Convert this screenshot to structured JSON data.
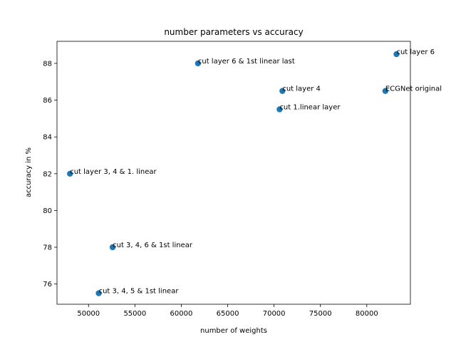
{
  "chart_data": {
    "type": "scatter",
    "title": "number parameters vs accuracy",
    "xlabel": "number of weights",
    "ylabel": "accuracy in %",
    "xlim": [
      46600,
      84700
    ],
    "ylim": [
      74.9,
      89.2
    ],
    "grid": false,
    "marker_color": "#1f77b4",
    "xticks": [
      50000,
      55000,
      60000,
      65000,
      70000,
      75000,
      80000
    ],
    "xtick_labels": [
      "50000",
      "55000",
      "60000",
      "65000",
      "70000",
      "75000",
      "80000"
    ],
    "yticks": [
      76,
      78,
      80,
      82,
      84,
      86,
      88
    ],
    "ytick_labels": [
      "76",
      "78",
      "80",
      "82",
      "84",
      "86",
      "88"
    ],
    "points": [
      {
        "x": 83200,
        "y": 88.5,
        "label": "cut layer 6"
      },
      {
        "x": 61800,
        "y": 88.0,
        "label": "cut layer 6 & 1st linear last"
      },
      {
        "x": 70900,
        "y": 86.5,
        "label": "cut layer 4"
      },
      {
        "x": 82000,
        "y": 86.5,
        "label": "ECGNet original"
      },
      {
        "x": 70600,
        "y": 85.5,
        "label": "cut 1.linear layer"
      },
      {
        "x": 48000,
        "y": 82.0,
        "label": "cut layer 3, 4 & 1. linear"
      },
      {
        "x": 52600,
        "y": 78.0,
        "label": "cut 3, 4, 6 & 1st linear"
      },
      {
        "x": 51100,
        "y": 75.5,
        "label": "cut 3, 4, 5 & 1st linear"
      }
    ]
  }
}
